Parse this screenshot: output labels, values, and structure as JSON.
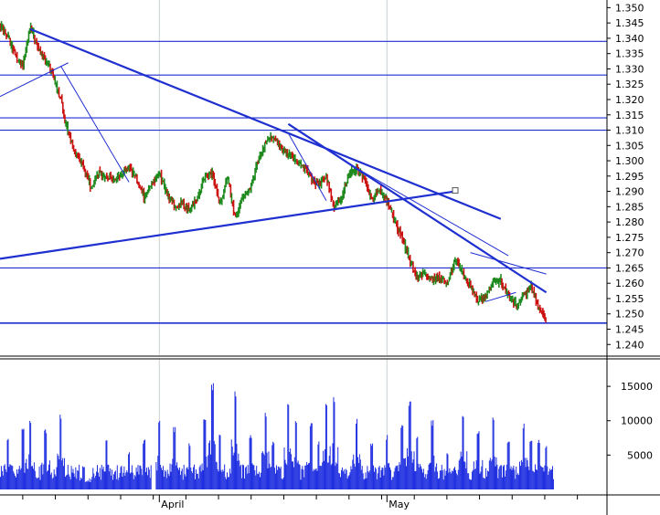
{
  "colors": {
    "background": "#ffffff",
    "grid": "#c9d0d6",
    "trendline": "#1f2fd0",
    "candle_up": "#1f8a1f",
    "candle_down": "#cc1111",
    "volume": "#1f2fe0",
    "axis": "#000000"
  },
  "chart_data": [
    {
      "type": "line",
      "title": "",
      "xlabel": "",
      "ylabel": "",
      "ylim": [
        1.2365,
        1.3525
      ],
      "y_ticks": [
        "1.350",
        "1.345",
        "1.340",
        "1.335",
        "1.330",
        "1.325",
        "1.320",
        "1.315",
        "1.310",
        "1.305",
        "1.300",
        "1.295",
        "1.290",
        "1.285",
        "1.280",
        "1.275",
        "1.270",
        "1.265",
        "1.260",
        "1.255",
        "1.250",
        "1.245",
        "1.240"
      ],
      "x_months": [
        {
          "label": "April",
          "day": 0
        },
        {
          "label": "May",
          "day": 30
        }
      ],
      "x_range_days": [
        -21,
        59
      ],
      "price_path": [
        [
          -21,
          1.344
        ],
        [
          -20,
          1.341
        ],
        [
          -19,
          1.334
        ],
        [
          -18,
          1.331
        ],
        [
          -17,
          1.344
        ],
        [
          -16,
          1.337
        ],
        [
          -14,
          1.328
        ],
        [
          -13,
          1.32
        ],
        [
          -12,
          1.309
        ],
        [
          -11,
          1.302
        ],
        [
          -10,
          1.298
        ],
        [
          -9,
          1.291
        ],
        [
          -8,
          1.296
        ],
        [
          -6,
          1.294
        ],
        [
          -5,
          1.296
        ],
        [
          -4,
          1.298
        ],
        [
          -3,
          1.294
        ],
        [
          -2,
          1.288
        ],
        [
          -1,
          1.292
        ],
        [
          0,
          1.296
        ],
        [
          1,
          1.289
        ],
        [
          2,
          1.285
        ],
        [
          3,
          1.286
        ],
        [
          4,
          1.284
        ],
        [
          5,
          1.288
        ],
        [
          6,
          1.295
        ],
        [
          7,
          1.296
        ],
        [
          8,
          1.286
        ],
        [
          9,
          1.295
        ],
        [
          10,
          1.281
        ],
        [
          11,
          1.288
        ],
        [
          12,
          1.291
        ],
        [
          13,
          1.3
        ],
        [
          14,
          1.306
        ],
        [
          15,
          1.308
        ],
        [
          16,
          1.304
        ],
        [
          17,
          1.302
        ],
        [
          18,
          1.3
        ],
        [
          19,
          1.298
        ],
        [
          20,
          1.294
        ],
        [
          21,
          1.292
        ],
        [
          22,
          1.295
        ],
        [
          23,
          1.285
        ],
        [
          24,
          1.288
        ],
        [
          25,
          1.296
        ],
        [
          26,
          1.297
        ],
        [
          27,
          1.294
        ],
        [
          28,
          1.287
        ],
        [
          29,
          1.291
        ],
        [
          30,
          1.287
        ],
        [
          31,
          1.28
        ],
        [
          32,
          1.275
        ],
        [
          33,
          1.267
        ],
        [
          34,
          1.262
        ],
        [
          35,
          1.263
        ],
        [
          36,
          1.261
        ],
        [
          37,
          1.262
        ],
        [
          38,
          1.26
        ],
        [
          39,
          1.268
        ],
        [
          40,
          1.263
        ],
        [
          41,
          1.259
        ],
        [
          42,
          1.254
        ],
        [
          43,
          1.256
        ],
        [
          44,
          1.26
        ],
        [
          45,
          1.261
        ],
        [
          46,
          1.256
        ],
        [
          47,
          1.253
        ],
        [
          48,
          1.256
        ],
        [
          49,
          1.259
        ],
        [
          50,
          1.252
        ],
        [
          51,
          1.247
        ]
      ],
      "horizontal_levels": [
        1.339,
        1.328,
        1.314,
        1.31,
        1.265,
        1.247
      ],
      "trend_lines": [
        {
          "from": [
            -17,
            1.343
          ],
          "to": [
            45,
            1.281
          ]
        },
        {
          "from": [
            -21,
            1.268
          ],
          "to": [
            39,
            1.29
          ]
        },
        {
          "from": [
            17,
            1.312
          ],
          "to": [
            51,
            1.257
          ]
        },
        {
          "from": [
            -21,
            1.321
          ],
          "to": [
            -12,
            1.332
          ]
        },
        {
          "from": [
            -13,
            1.331
          ],
          "to": [
            -4,
            1.293
          ]
        },
        {
          "from": [
            17,
            1.309
          ],
          "to": [
            22,
            1.287
          ]
        },
        {
          "from": [
            25,
            1.299
          ],
          "to": [
            46,
            1.269
          ]
        },
        {
          "from": [
            41,
            1.27
          ],
          "to": [
            51,
            1.263
          ]
        },
        {
          "from": [
            43,
            1.254
          ],
          "to": [
            47,
            1.257
          ]
        }
      ],
      "marker": {
        "day": 39,
        "value": 1.29
      }
    },
    {
      "type": "bar",
      "title": "",
      "xlabel": "",
      "ylabel": "",
      "ylim": [
        0,
        19000
      ],
      "y_ticks": [
        "15000",
        "10000",
        "5000"
      ],
      "typical_volume": 2500,
      "volume_spikes": [
        [
          -20,
          7600
        ],
        [
          -18,
          8900
        ],
        [
          -17,
          10500
        ],
        [
          -15,
          8800
        ],
        [
          -13,
          11000
        ],
        [
          -10,
          7900
        ],
        [
          -7,
          7300
        ],
        [
          -4,
          5600
        ],
        [
          -2,
          7400
        ],
        [
          0,
          10300
        ],
        [
          2,
          9200
        ],
        [
          4,
          7000
        ],
        [
          6,
          10200
        ],
        [
          7,
          15800
        ],
        [
          8,
          8000
        ],
        [
          10,
          15000
        ],
        [
          12,
          8000
        ],
        [
          14,
          11700
        ],
        [
          15,
          7000
        ],
        [
          17,
          12800
        ],
        [
          18,
          10100
        ],
        [
          20,
          9900
        ],
        [
          21,
          7000
        ],
        [
          22,
          13500
        ],
        [
          23,
          13500
        ],
        [
          26,
          10300
        ],
        [
          28,
          6900
        ],
        [
          30,
          8000
        ],
        [
          32,
          9500
        ],
        [
          33,
          13100
        ],
        [
          34,
          7700
        ],
        [
          36,
          10200
        ],
        [
          38,
          5500
        ],
        [
          40,
          11200
        ],
        [
          42,
          8700
        ],
        [
          44,
          10700
        ],
        [
          46,
          7300
        ],
        [
          48,
          9600
        ],
        [
          49,
          7200
        ],
        [
          50,
          7500
        ],
        [
          51,
          6700
        ]
      ],
      "gap_days": [
        -1
      ]
    }
  ]
}
